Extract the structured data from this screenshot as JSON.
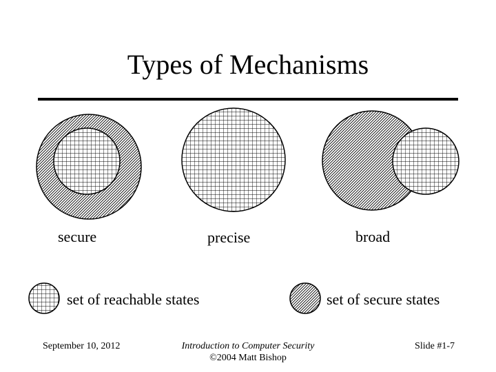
{
  "slide": {
    "title": "Types of Mechanisms"
  },
  "diagram": {
    "labels": {
      "secure": "secure",
      "precise": "precise",
      "broad": "broad"
    },
    "legend": {
      "reachable": "set of reachable states",
      "secure_states": "set of secure states"
    },
    "patterns": {
      "reachable": "grid-pattern",
      "secure": "diagonal-hatch-pattern"
    }
  },
  "footer": {
    "date": "September 10, 2012",
    "course": "Introduction to Computer Security",
    "copyright": "©2004 Matt Bishop",
    "slide_number": "Slide #1-7"
  }
}
